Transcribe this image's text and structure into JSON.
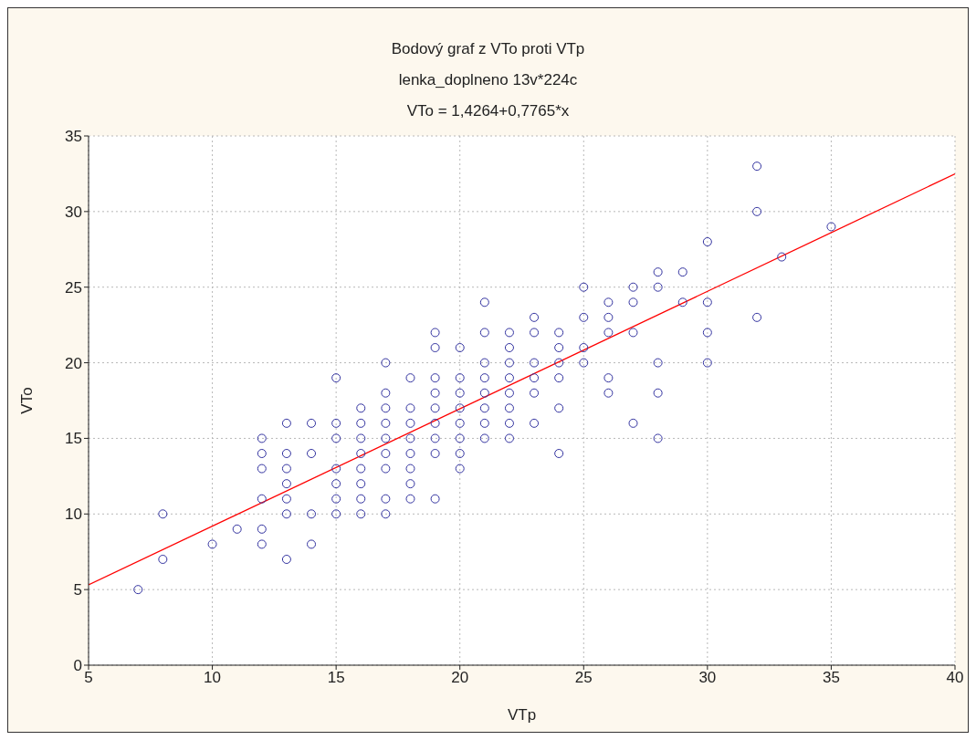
{
  "chart_data": {
    "type": "scatter",
    "title": "Bodový graf z VTo proti VTp",
    "subtitle": "lenka_doplneno 13v*224c",
    "annotations": [
      "VTo = 1,4264+0,7765*x"
    ],
    "xlabel": "VTp",
    "ylabel": "VTo",
    "xlim": [
      5,
      40
    ],
    "xticks": [
      5,
      10,
      15,
      20,
      25,
      30,
      35,
      40
    ],
    "ylim": [
      0,
      35
    ],
    "yticks": [
      0,
      5,
      10,
      15,
      20,
      25,
      30,
      35
    ],
    "grid": true,
    "legend": false,
    "x": [
      7,
      8,
      8,
      10,
      11,
      12,
      12,
      12,
      12,
      12,
      12,
      13,
      13,
      13,
      13,
      13,
      13,
      13,
      14,
      14,
      14,
      14,
      15,
      15,
      15,
      15,
      15,
      15,
      15,
      16,
      16,
      16,
      16,
      16,
      16,
      16,
      16,
      17,
      17,
      17,
      17,
      17,
      17,
      17,
      17,
      17,
      18,
      18,
      18,
      18,
      18,
      18,
      18,
      18,
      19,
      19,
      19,
      19,
      19,
      19,
      19,
      19,
      19,
      20,
      20,
      20,
      20,
      20,
      20,
      20,
      20,
      21,
      21,
      21,
      21,
      21,
      21,
      21,
      21,
      22,
      22,
      22,
      22,
      22,
      22,
      22,
      22,
      23,
      23,
      23,
      23,
      23,
      23,
      24,
      24,
      24,
      24,
      24,
      24,
      25,
      25,
      25,
      25,
      26,
      26,
      26,
      26,
      26,
      27,
      27,
      27,
      27,
      28,
      28,
      28,
      28,
      28,
      29,
      29,
      30,
      30,
      30,
      30,
      32,
      32,
      32,
      33,
      35
    ],
    "series": [
      {
        "marker": "circle",
        "color": "#3333a0",
        "values": [
          5,
          10,
          7,
          8,
          9,
          15,
          14,
          13,
          11,
          9,
          8,
          16,
          14,
          13,
          12,
          11,
          10,
          7,
          16,
          14,
          10,
          8,
          19,
          16,
          15,
          13,
          12,
          11,
          10,
          17,
          16,
          15,
          14,
          13,
          12,
          11,
          10,
          20,
          18,
          17,
          16,
          15,
          14,
          13,
          11,
          10,
          19,
          17,
          16,
          15,
          14,
          13,
          12,
          11,
          22,
          21,
          19,
          18,
          17,
          16,
          15,
          14,
          11,
          21,
          19,
          18,
          17,
          16,
          15,
          14,
          13,
          24,
          22,
          20,
          19,
          18,
          17,
          16,
          15,
          22,
          21,
          20,
          19,
          18,
          17,
          16,
          15,
          23,
          22,
          20,
          19,
          18,
          16,
          22,
          21,
          20,
          19,
          17,
          14,
          25,
          23,
          21,
          20,
          24,
          23,
          22,
          19,
          18,
          25,
          24,
          22,
          16,
          26,
          25,
          20,
          18,
          15,
          26,
          24,
          28,
          24,
          22,
          20,
          33,
          30,
          23,
          27,
          29
        ]
      },
      {
        "type": "line",
        "color": "#ff0000",
        "x": [
          5,
          40
        ],
        "values": [
          5.31,
          32.49
        ]
      }
    ]
  }
}
